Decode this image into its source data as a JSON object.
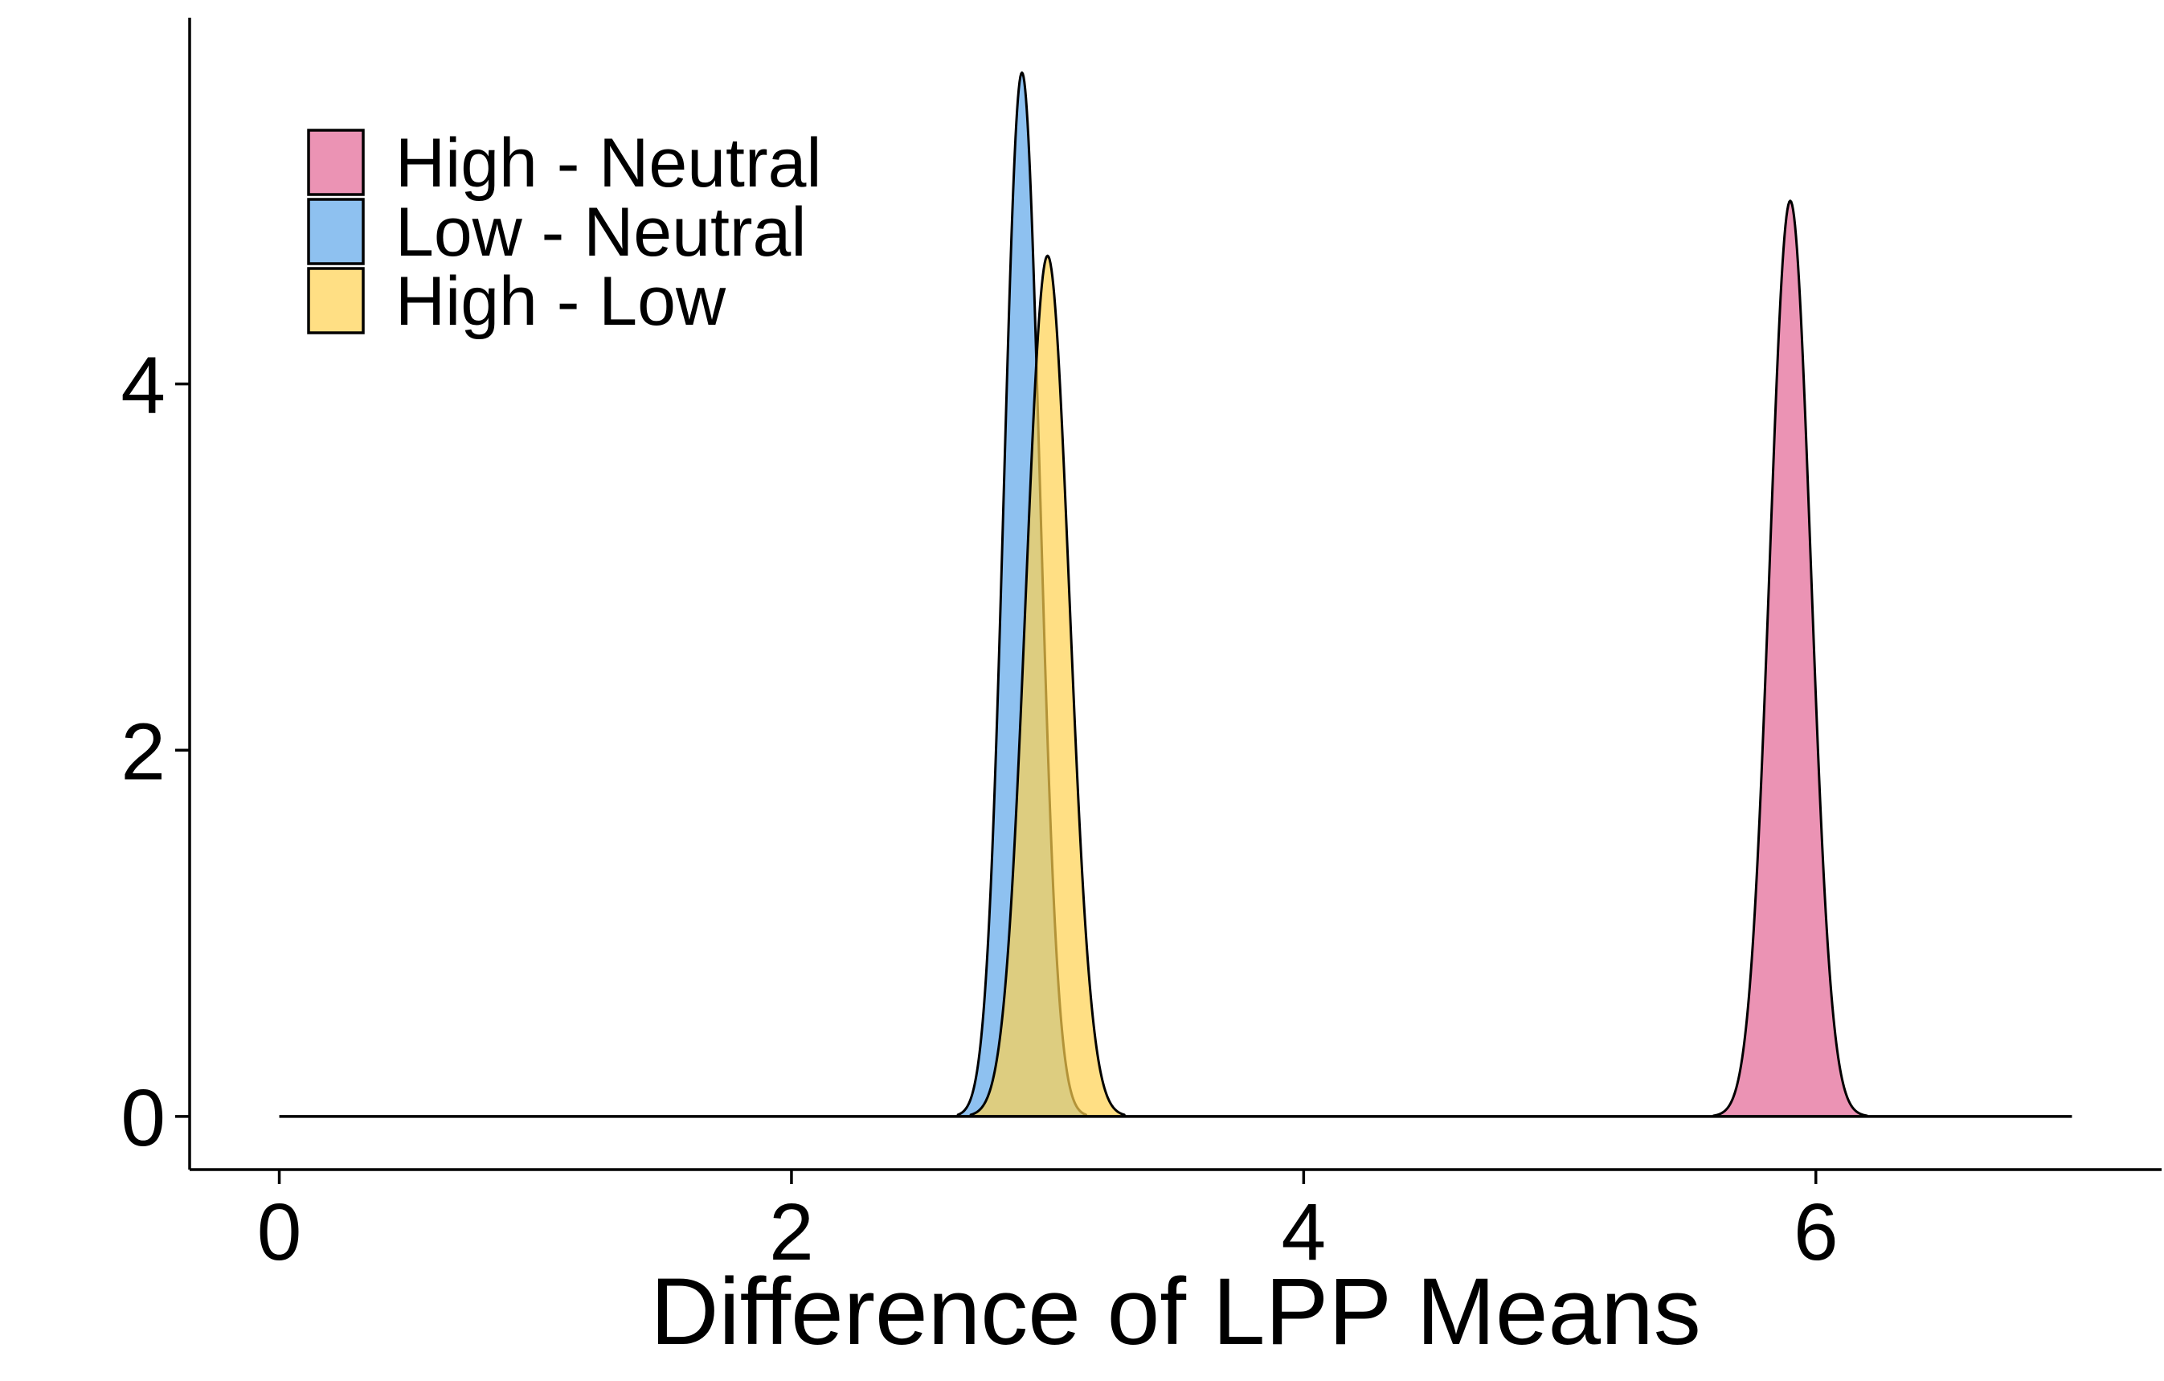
{
  "chart_data": {
    "type": "area",
    "chart_kind": "density",
    "title": "",
    "xlabel": "Difference of LPP Means",
    "ylabel": "",
    "xlim": [
      -0.35,
      7.35
    ],
    "ylim": [
      -0.29,
      6.0
    ],
    "x_ticks": [
      0,
      2,
      4,
      6
    ],
    "x_tick_labels": [
      "0",
      "2",
      "4",
      "6"
    ],
    "y_ticks": [
      0,
      2,
      4
    ],
    "y_tick_labels": [
      "0",
      "2",
      "4"
    ],
    "grid": false,
    "legend_position": "top-left",
    "baseline_range": [
      0,
      7
    ],
    "fill_opacity": 0.7,
    "series": [
      {
        "name": "High - Neutral",
        "color": "#E26594",
        "peak_x": 5.9,
        "peak_density": 5.0,
        "sd": 0.08,
        "support": [
          5.6,
          6.2
        ]
      },
      {
        "name": "Low - Neutral",
        "color": "#5EA6EA",
        "peak_x": 2.9,
        "peak_density": 5.7,
        "sd": 0.07,
        "support": [
          2.65,
          3.15
        ]
      },
      {
        "name": "High - Low",
        "color": "#FFD250",
        "peak_x": 3.0,
        "peak_density": 4.7,
        "sd": 0.085,
        "support": [
          2.7,
          3.3
        ]
      }
    ]
  }
}
